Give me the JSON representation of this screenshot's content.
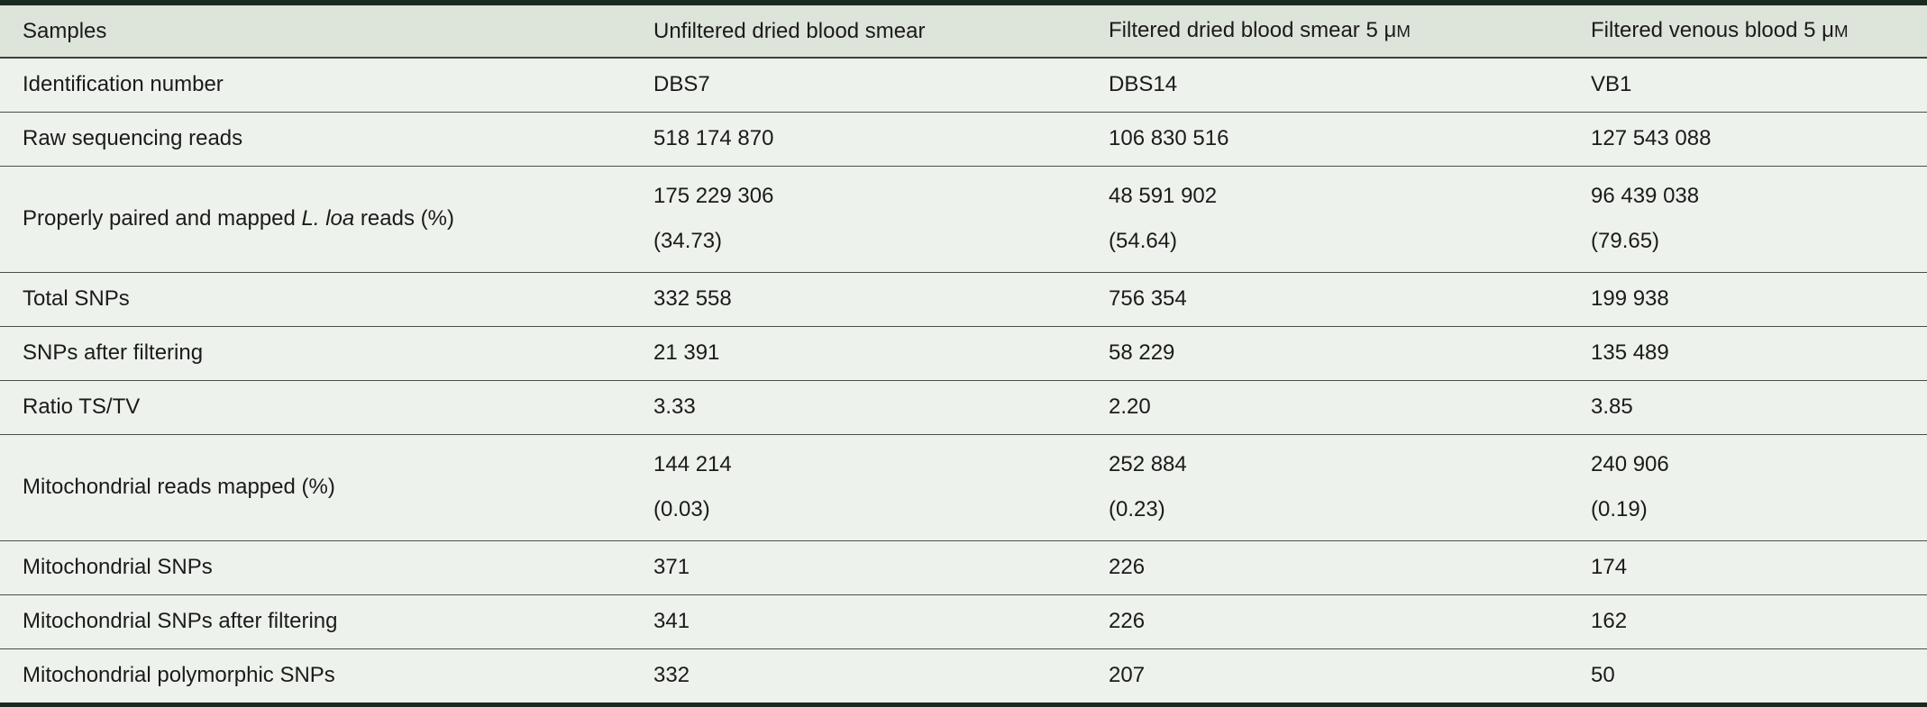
{
  "meta": {
    "colors": {
      "frame_border": "#1a2a21",
      "header_background": "#dde4d9",
      "row_background": "#eef2ec",
      "row_separator": "#4a5049",
      "text": "#1b1b1b"
    }
  },
  "table": {
    "columns": [
      {
        "label": "Samples"
      },
      {
        "label": "Unfiltered dried blood smear"
      },
      {
        "label": "Filtered dried blood smear 5 μ",
        "unit": "M"
      },
      {
        "label": "Filtered venous blood 5 μ",
        "unit": "M"
      }
    ],
    "rows": [
      {
        "label": "Identification number",
        "values": [
          [
            "DBS7"
          ],
          [
            "DBS14"
          ],
          [
            "VB1"
          ]
        ]
      },
      {
        "label": "Raw sequencing reads",
        "values": [
          [
            "518 174 870"
          ],
          [
            "106 830 516"
          ],
          [
            "127 543 088"
          ]
        ]
      },
      {
        "label_prefix": "Properly paired and mapped ",
        "label_italic": "L. loa",
        "label_suffix": " reads (%)",
        "values": [
          [
            "175 229 306",
            "(34.73)"
          ],
          [
            "48 591 902",
            "(54.64)"
          ],
          [
            "96 439 038",
            "(79.65)"
          ]
        ]
      },
      {
        "label": "Total SNPs",
        "values": [
          [
            "332 558"
          ],
          [
            "756 354"
          ],
          [
            "199 938"
          ]
        ]
      },
      {
        "label": "SNPs after filtering",
        "values": [
          [
            "21 391"
          ],
          [
            "58 229"
          ],
          [
            "135 489"
          ]
        ]
      },
      {
        "label": "Ratio TS/TV",
        "values": [
          [
            "3.33"
          ],
          [
            "2.20"
          ],
          [
            "3.85"
          ]
        ]
      },
      {
        "label": "Mitochondrial reads mapped (%)",
        "values": [
          [
            "144 214",
            "(0.03)"
          ],
          [
            "252 884",
            "(0.23)"
          ],
          [
            "240 906",
            "(0.19)"
          ]
        ]
      },
      {
        "label": "Mitochondrial SNPs",
        "values": [
          [
            "371"
          ],
          [
            "226"
          ],
          [
            "174"
          ]
        ]
      },
      {
        "label": "Mitochondrial SNPs after filtering",
        "values": [
          [
            "341"
          ],
          [
            "226"
          ],
          [
            "162"
          ]
        ]
      },
      {
        "label": "Mitochondrial polymorphic SNPs",
        "values": [
          [
            "332"
          ],
          [
            "207"
          ],
          [
            "50"
          ]
        ]
      }
    ]
  }
}
